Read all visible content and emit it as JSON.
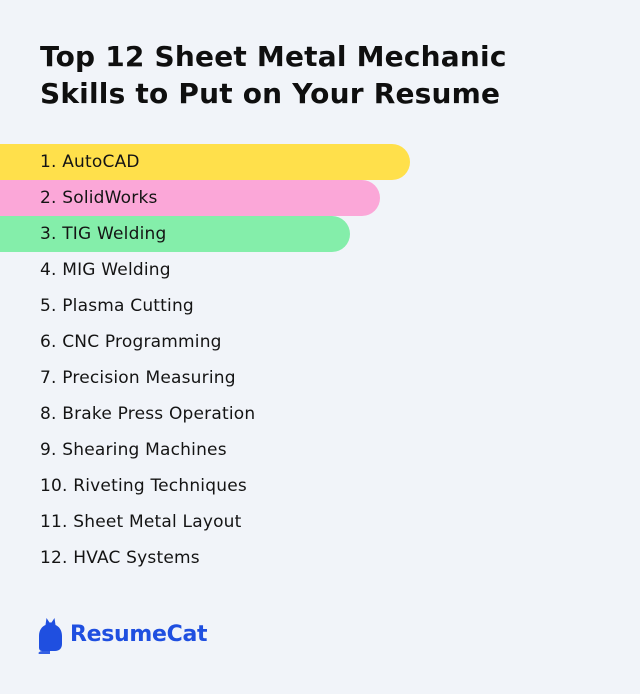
{
  "title_line1": "Top 12 Sheet Metal Mechanic",
  "title_line2": "Skills to Put on Your Resume",
  "skills": [
    {
      "label": "1. AutoCAD",
      "color": "#ffe04b"
    },
    {
      "label": "2. SolidWorks",
      "color": "#fba7d8"
    },
    {
      "label": "3. TIG Welding",
      "color": "#84eeaa"
    },
    {
      "label": "4. MIG Welding"
    },
    {
      "label": "5. Plasma Cutting"
    },
    {
      "label": "6. CNC Programming"
    },
    {
      "label": "7. Precision Measuring"
    },
    {
      "label": "8. Brake Press Operation"
    },
    {
      "label": "9. Shearing Machines"
    },
    {
      "label": "10. Riveting Techniques"
    },
    {
      "label": "11. Sheet Metal Layout"
    },
    {
      "label": "12. HVAC Systems"
    }
  ],
  "brand": {
    "name": "ResumeCat",
    "color": "#1f4fe0",
    "icon": "cat-icon"
  }
}
